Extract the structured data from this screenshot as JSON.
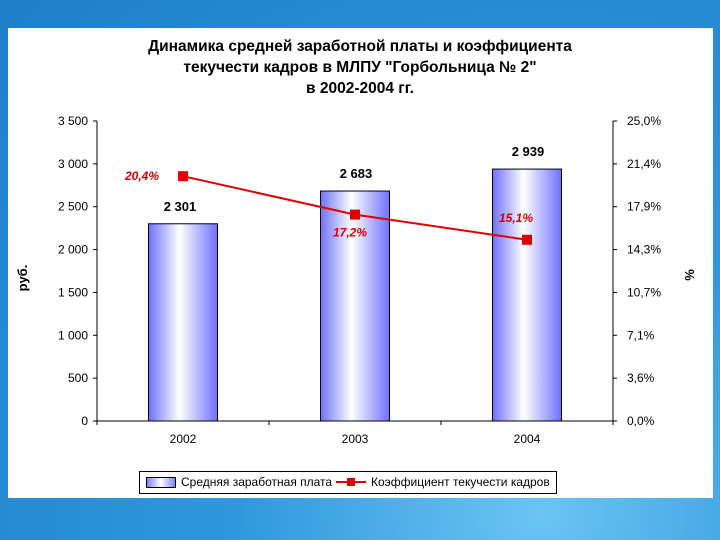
{
  "title_lines": [
    "Динамика средней заработной платы и коэффициента",
    "текучести кадров в МЛПУ \"Горбольница № 2\"",
    "в 2002-2004 гг."
  ],
  "chart_data": {
    "type": "bar",
    "categories": [
      "2002",
      "2003",
      "2004"
    ],
    "series": [
      {
        "name": "Средняя заработная плата",
        "type": "bar",
        "axis": "left",
        "values": [
          2301,
          2683,
          2939
        ],
        "labels": [
          "2 301",
          "2 683",
          "2 939"
        ],
        "color": "#8080ff"
      },
      {
        "name": "Коэффициент текучести кадров",
        "type": "line",
        "axis": "right",
        "values": [
          20.4,
          17.2,
          15.1
        ],
        "labels": [
          "20,4%",
          "17,2%",
          "15,1%"
        ],
        "color": "#e00000"
      }
    ],
    "ylabel": "руб.",
    "y2label": "%",
    "ylim": [
      0,
      3500
    ],
    "y2lim": [
      0,
      25
    ],
    "yticks": [
      "0",
      "500",
      "1 000",
      "1 500",
      "2 000",
      "2 500",
      "3 000",
      "3 500"
    ],
    "y2ticks": [
      "0,0%",
      "3,6%",
      "7,1%",
      "10,7%",
      "14,3%",
      "17,9%",
      "21,4%",
      "25,0%"
    ],
    "grid": false,
    "legend_position": "bottom"
  }
}
